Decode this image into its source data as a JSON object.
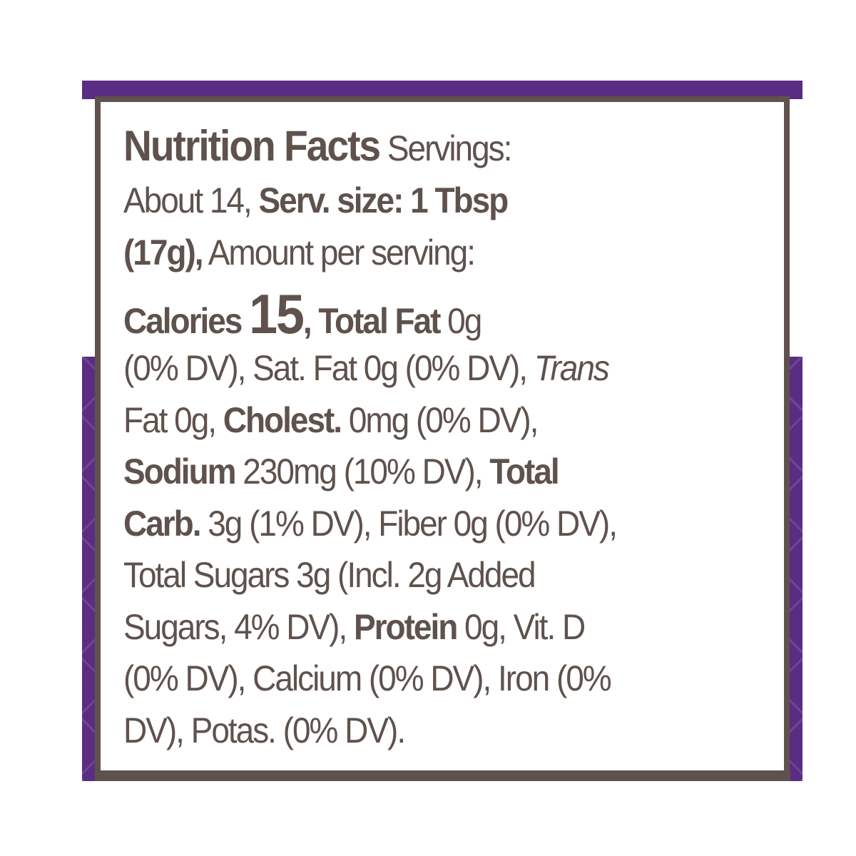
{
  "colors": {
    "brand_purple": "#5a2d82",
    "text_brown": "#5f524d"
  },
  "label": {
    "lines": [
      [
        {
          "t": "Nutrition Facts",
          "s": "b title"
        },
        {
          "t": " Servings:",
          "s": ""
        }
      ],
      [
        {
          "t": "About 14, ",
          "s": ""
        },
        {
          "t": "Serv. size: 1 Tbsp",
          "s": "b"
        }
      ],
      [
        {
          "t": "(17g),",
          "s": "b"
        },
        {
          "t": " Amount per serving:",
          "s": ""
        }
      ],
      [
        {
          "t": "Calories ",
          "s": "b"
        },
        {
          "t": "15",
          "s": "b cal"
        },
        {
          "t": ", Total Fat",
          "s": "b"
        },
        {
          "t": " 0g",
          "s": ""
        }
      ],
      [
        {
          "t": "(0% DV), Sat. Fat 0g (0% DV), ",
          "s": ""
        },
        {
          "t": "Trans",
          "s": "i"
        }
      ],
      [
        {
          "t": "Fat 0g, ",
          "s": ""
        },
        {
          "t": "Cholest.",
          "s": "b"
        },
        {
          "t": " 0mg (0% DV),",
          "s": ""
        }
      ],
      [
        {
          "t": "Sodium",
          "s": "b"
        },
        {
          "t": " 230mg (10% DV), ",
          "s": ""
        },
        {
          "t": "Total",
          "s": "b"
        }
      ],
      [
        {
          "t": "Carb.",
          "s": "b"
        },
        {
          "t": " 3g (1% DV), Fiber 0g (0% DV),",
          "s": ""
        }
      ],
      [
        {
          "t": "Total Sugars 3g (Incl. 2g Added",
          "s": ""
        }
      ],
      [
        {
          "t": "Sugars, 4% DV), ",
          "s": ""
        },
        {
          "t": "Protein",
          "s": "b"
        },
        {
          "t": " 0g, Vit. D",
          "s": ""
        }
      ],
      [
        {
          "t": "(0% DV), Calcium (0% DV), Iron (0%",
          "s": ""
        }
      ],
      [
        {
          "t": "DV), Potas. (0% DV).",
          "s": ""
        }
      ]
    ]
  }
}
